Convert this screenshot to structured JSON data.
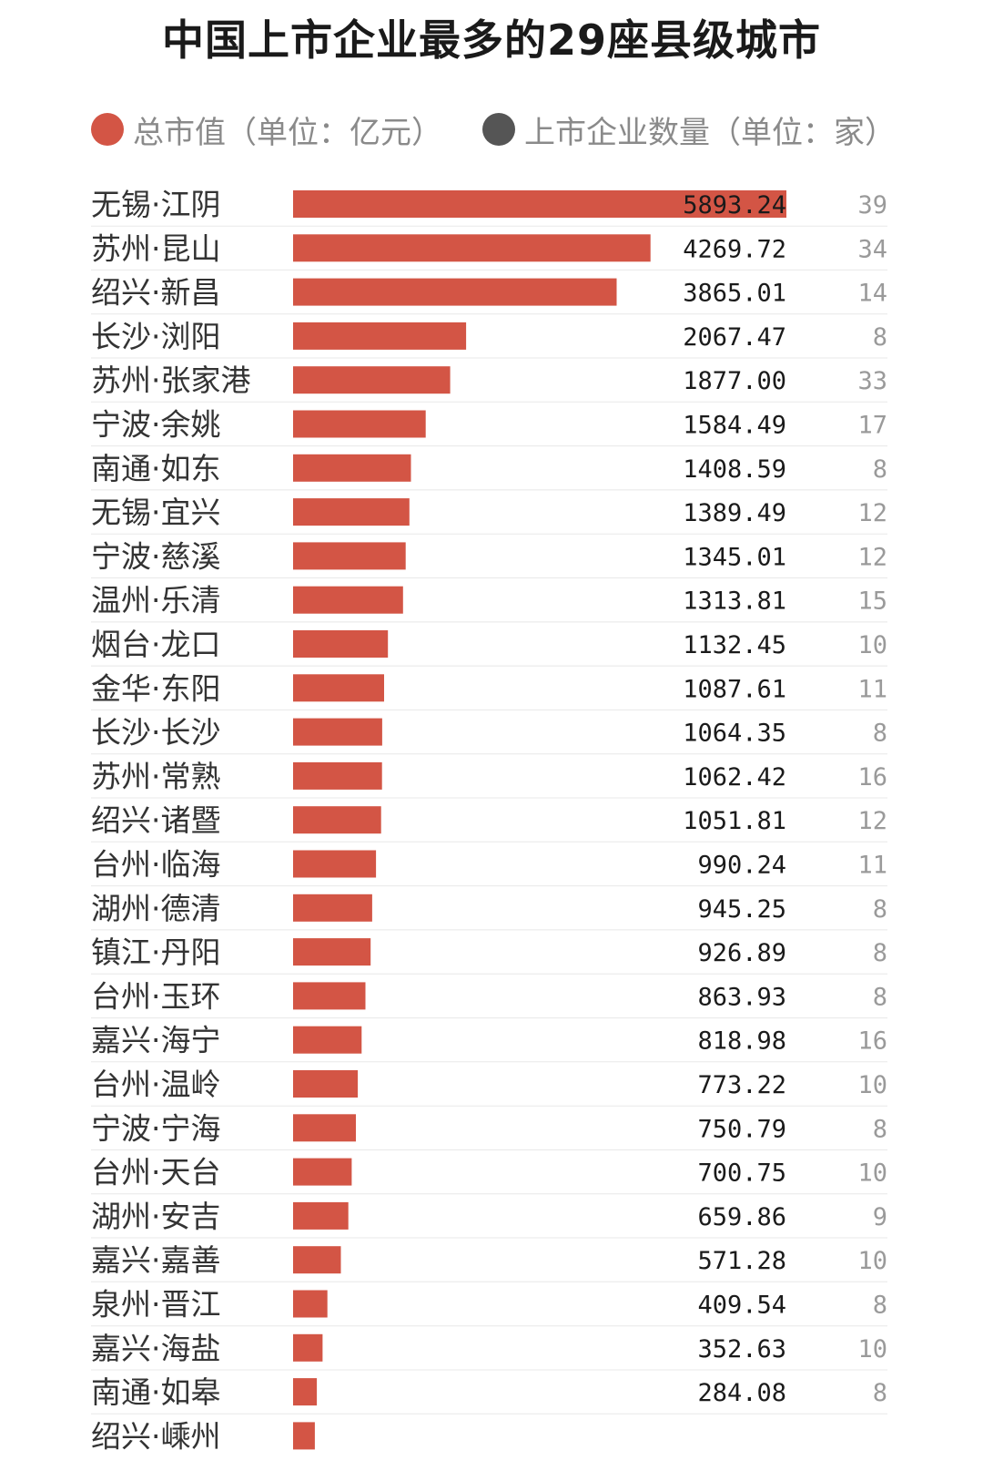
{
  "title": "中国上市企业最多的29座县级城市",
  "legend": {
    "market_cap": {
      "label": "总市值（单位：亿元）",
      "color": "#d35545"
    },
    "company_count": {
      "label": "上市企业数量（单位：家）",
      "color": "#555555"
    }
  },
  "chart_data": {
    "type": "bar",
    "orientation": "horizontal",
    "categories": [
      "无锡·江阴",
      "苏州·昆山",
      "绍兴·新昌",
      "长沙·浏阳",
      "苏州·张家港",
      "宁波·余姚",
      "南通·如东",
      "无锡·宜兴",
      "宁波·慈溪",
      "温州·乐清",
      "烟台·龙口",
      "金华·东阳",
      "长沙·长沙",
      "苏州·常熟",
      "绍兴·诸暨",
      "台州·临海",
      "湖州·德清",
      "镇江·丹阳",
      "台州·玉环",
      "嘉兴·海宁",
      "台州·温岭",
      "宁波·宁海",
      "台州·天台",
      "湖州·安吉",
      "嘉兴·嘉善",
      "泉州·晋江",
      "嘉兴·海盐",
      "南通·如皋",
      "绍兴·嵊州"
    ],
    "series": [
      {
        "name": "总市值（单位：亿元）",
        "color": "#d35545",
        "values": [
          5893.24,
          4269.72,
          3865.01,
          2067.47,
          1877.0,
          1584.49,
          1408.59,
          1389.49,
          1345.01,
          1313.81,
          1132.45,
          1087.61,
          1064.35,
          1062.42,
          1051.81,
          990.24,
          945.25,
          926.89,
          863.93,
          818.98,
          773.22,
          750.79,
          700.75,
          659.86,
          571.28,
          409.54,
          352.63,
          284.08,
          260
        ],
        "labels": [
          "5893.24",
          "4269.72",
          "3865.01",
          "2067.47",
          "1877.00",
          "1584.49",
          "1408.59",
          "1389.49",
          "1345.01",
          "1313.81",
          "1132.45",
          "1087.61",
          "1064.35",
          "1062.42",
          "1051.81",
          "990.24",
          "945.25",
          "926.89",
          "863.93",
          "818.98",
          "773.22",
          "750.79",
          "700.75",
          "659.86",
          "571.28",
          "409.54",
          "352.63",
          "284.08",
          ""
        ]
      },
      {
        "name": "上市企业数量（单位：家）",
        "color": "#9a9a9a",
        "values": [
          39,
          34,
          14,
          8,
          33,
          17,
          8,
          12,
          12,
          15,
          10,
          11,
          8,
          16,
          12,
          11,
          8,
          8,
          8,
          16,
          10,
          8,
          10,
          9,
          10,
          8,
          10,
          8,
          null
        ],
        "labels": [
          "39",
          "34",
          "14",
          "8",
          "33",
          "17",
          "8",
          "12",
          "12",
          "15",
          "10",
          "11",
          "8",
          "16",
          "12",
          "11",
          "8",
          "8",
          "8",
          "16",
          "10",
          "8",
          "10",
          "9",
          "10",
          "8",
          "10",
          "8",
          ""
        ]
      }
    ],
    "xlim": [
      0,
      5893.24
    ],
    "grid": false,
    "legend_position": "top-left"
  }
}
